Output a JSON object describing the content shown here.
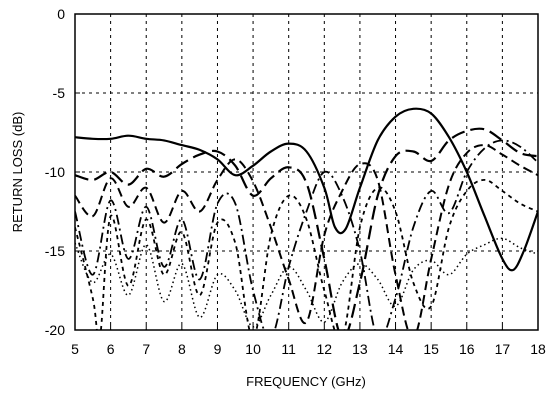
{
  "chart_data": {
    "type": "line",
    "title": "",
    "xlabel": "FREQUENCY (GHz)",
    "ylabel": "RETURN LOSS (dB)",
    "xlim": [
      5,
      18
    ],
    "ylim": [
      -20,
      0
    ],
    "x_ticks": [
      "5",
      "6",
      "7",
      "8",
      "9",
      "10",
      "11",
      "12",
      "13",
      "14",
      "15",
      "16",
      "17",
      "18"
    ],
    "y_ticks": [
      "0",
      "-5",
      "-10",
      "-15",
      "-20"
    ],
    "grid": true,
    "legend": "none",
    "series": [
      {
        "style": "solid",
        "x": [
          5.0,
          5.5,
          6.0,
          6.5,
          7.0,
          7.5,
          8.0,
          8.5,
          9.0,
          9.5,
          10.0,
          10.5,
          11.0,
          11.5,
          12.0,
          12.3,
          12.6,
          13.0,
          13.5,
          14.0,
          14.5,
          15.0,
          15.5,
          16.0,
          16.5,
          17.0,
          17.3,
          17.6,
          18.0
        ],
        "y": [
          -7.8,
          -7.9,
          -7.9,
          -7.7,
          -7.9,
          -8.0,
          -8.3,
          -8.6,
          -9.2,
          -10.2,
          -9.6,
          -8.7,
          -8.2,
          -8.7,
          -11.0,
          -13.5,
          -13.6,
          -11.0,
          -8.0,
          -6.5,
          -6.0,
          -6.3,
          -7.8,
          -10.0,
          -12.8,
          -15.5,
          -16.2,
          -15.0,
          -12.5
        ]
      },
      {
        "style": "long-dash",
        "x": [
          5.0,
          5.5,
          6.0,
          6.5,
          7.0,
          7.5,
          8.0,
          8.5,
          9.0,
          9.5,
          10.0,
          10.5,
          11.0,
          11.5,
          12.0,
          12.5,
          13.0,
          13.5,
          14.0,
          14.5,
          15.0,
          15.5,
          16.0,
          16.5,
          17.0,
          17.5,
          18.0
        ],
        "y": [
          -10.2,
          -10.5,
          -10.0,
          -10.8,
          -9.8,
          -10.3,
          -9.5,
          -8.9,
          -8.7,
          -9.6,
          -11.5,
          -10.4,
          -9.7,
          -10.7,
          -15.5,
          -20.5,
          -17.0,
          -11.5,
          -9.0,
          -8.7,
          -9.3,
          -8.0,
          -7.4,
          -7.3,
          -8.0,
          -8.8,
          -9.0
        ]
      },
      {
        "style": "dash",
        "x": [
          5.0,
          5.5,
          6.0,
          6.5,
          7.0,
          7.5,
          8.0,
          8.5,
          9.0,
          9.5,
          10.0,
          10.5,
          11.0,
          11.5,
          12.0,
          12.5,
          13.0,
          13.5,
          14.0,
          14.5,
          15.0,
          15.5,
          16.0,
          16.5,
          17.0,
          17.5,
          18.0
        ],
        "y": [
          -11.5,
          -12.8,
          -10.4,
          -12.2,
          -11.0,
          -13.2,
          -11.2,
          -12.5,
          -10.5,
          -9.2,
          -10.6,
          -13.5,
          -16.8,
          -19.5,
          -14.0,
          -11.2,
          -9.5,
          -10.5,
          -16.5,
          -20.5,
          -15.5,
          -10.8,
          -8.8,
          -8.3,
          -8.9,
          -9.6,
          -10.2
        ]
      },
      {
        "style": "dash-dot",
        "x": [
          5.0,
          5.5,
          6.0,
          6.5,
          7.0,
          7.5,
          8.0,
          8.5,
          9.0,
          9.5,
          10.0,
          10.5,
          11.0,
          11.5,
          12.0,
          12.5,
          13.0,
          13.5,
          14.0,
          14.5,
          15.0,
          15.5,
          16.0,
          16.5,
          17.0,
          17.5,
          18.0
        ],
        "y": [
          -12.5,
          -16.5,
          -11.8,
          -15.5,
          -12.2,
          -16.0,
          -13.0,
          -16.8,
          -12.0,
          -12.0,
          -17.5,
          -20.5,
          -16.0,
          -12.5,
          -10.0,
          -11.5,
          -15.0,
          -20.5,
          -18.0,
          -13.5,
          -11.2,
          -12.6,
          -10.0,
          -8.5,
          -8.0,
          -8.4,
          -9.4
        ]
      },
      {
        "style": "short-dash",
        "x": [
          5.0,
          5.5,
          5.7,
          6.0,
          6.5,
          7.0,
          7.5,
          8.0,
          8.5,
          9.0,
          9.5,
          10.0,
          10.5,
          11.0,
          11.5,
          12.0,
          12.5,
          13.0,
          13.5,
          14.0,
          14.5,
          15.0,
          15.5,
          16.0,
          16.5,
          17.0,
          17.5,
          18.0
        ],
        "y": [
          -13.5,
          -18.0,
          -20.5,
          -12.8,
          -17.2,
          -13.0,
          -16.5,
          -13.8,
          -17.8,
          -13.2,
          -14.5,
          -20.5,
          -14.0,
          -11.5,
          -13.0,
          -17.5,
          -20.5,
          -13.5,
          -11.0,
          -12.5,
          -17.0,
          -18.5,
          -13.5,
          -11.2,
          -10.5,
          -11.2,
          -12.0,
          -12.5
        ]
      },
      {
        "style": "dotted",
        "x": [
          5.0,
          5.5,
          6.0,
          6.5,
          7.0,
          7.5,
          8.0,
          8.5,
          9.0,
          9.5,
          10.0,
          10.5,
          11.0,
          11.5,
          12.0,
          12.5,
          13.0,
          13.5,
          14.0,
          14.5,
          15.0,
          15.5,
          16.0,
          16.5,
          17.0,
          17.5,
          18.0
        ],
        "y": [
          -14.5,
          -17.0,
          -15.2,
          -17.8,
          -14.6,
          -18.2,
          -15.8,
          -19.2,
          -16.5,
          -17.5,
          -19.8,
          -17.8,
          -16.0,
          -17.5,
          -19.5,
          -17.0,
          -15.8,
          -16.8,
          -18.5,
          -16.2,
          -15.6,
          -16.5,
          -15.2,
          -14.6,
          -14.2,
          -14.8,
          -15.2
        ]
      }
    ]
  }
}
